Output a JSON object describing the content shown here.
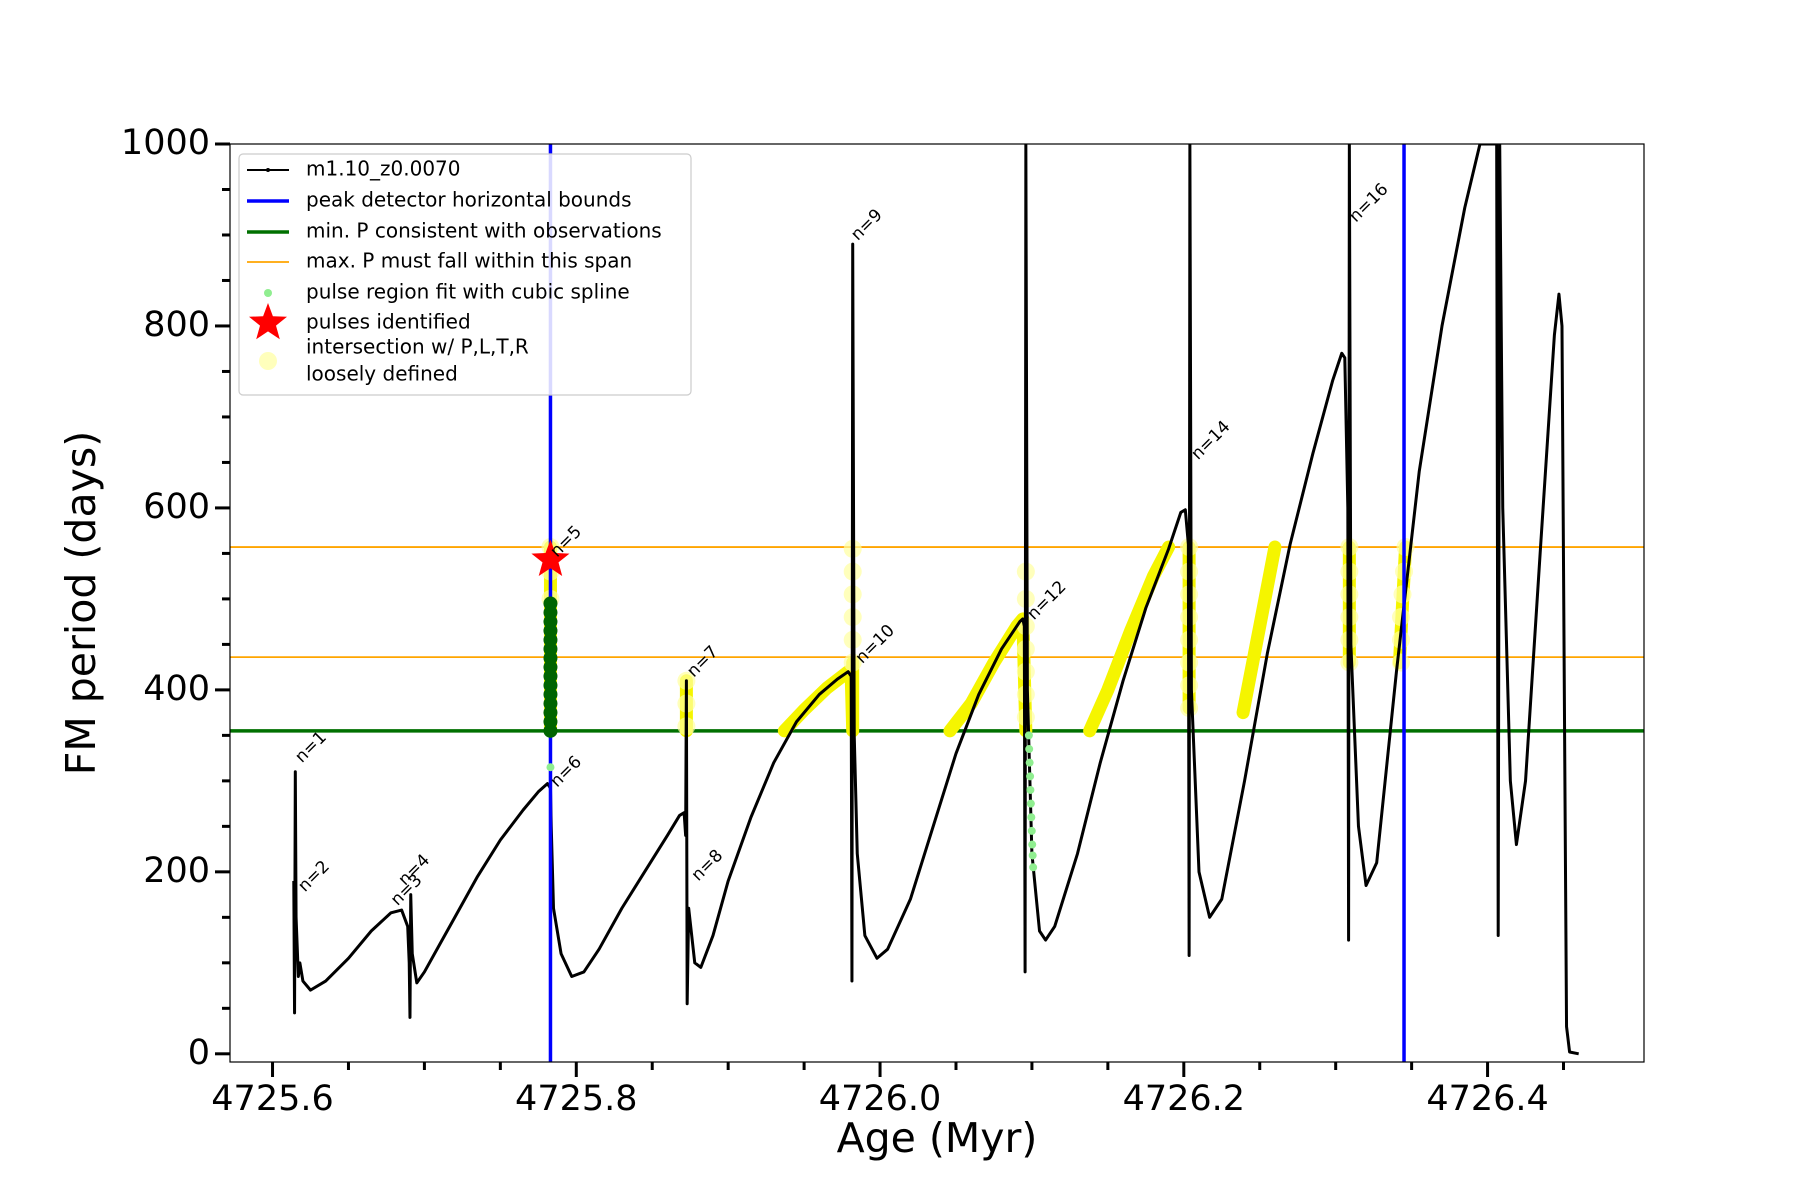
{
  "chart_data": {
    "type": "line",
    "xlabel": "Age (Myr)",
    "ylabel": "FM period (days)",
    "xlim": [
      4725.572,
      4726.503
    ],
    "ylim": [
      -9,
      1000
    ],
    "xticks": [
      4725.6,
      4725.8,
      {
        "value": 4726,
        "label": "4726.0"
      },
      4726.2,
      4726.4
    ],
    "xticks_minor": [
      4725.65,
      4725.7,
      4725.75,
      4725.85,
      4725.9,
      4725.95,
      4726.05,
      4726.1,
      4726.15,
      4726.25,
      4726.3,
      4726.35,
      4726.45
    ],
    "yticks": [
      0,
      200,
      400,
      600,
      800,
      1000
    ],
    "yticks_minor": [
      50,
      100,
      150,
      250,
      300,
      350,
      450,
      500,
      550,
      650,
      700,
      750,
      850,
      900,
      950
    ],
    "series": [
      {
        "name": "m1.10_z0.0070",
        "color": "#000000",
        "x": [
          4725.614,
          4725.6145,
          4725.615,
          4725.6155,
          4725.617,
          4725.618,
          4725.62,
          4725.625,
          4725.635,
          4725.65,
          4725.665,
          4725.678,
          4725.685,
          4725.689,
          4725.69,
          4725.6905,
          4725.691,
          4725.692,
          4725.695,
          4725.7,
          4725.71,
          4725.72,
          4725.735,
          4725.75,
          4725.765,
          4725.775,
          4725.781,
          4725.783,
          4725.7835,
          4725.785,
          4725.79,
          4725.797,
          4725.805,
          4725.815,
          4725.83,
          4725.845,
          4725.86,
          4725.868,
          4725.871,
          4725.872,
          4725.8725,
          4725.873,
          4725.874,
          4725.878,
          4725.882,
          4725.89,
          4725.9,
          4725.915,
          4725.93,
          4725.945,
          4725.96,
          4725.972,
          4725.979,
          4725.981,
          4725.9815,
          4725.982,
          4725.983,
          4725.985,
          4725.99,
          4725.998,
          4726.005,
          4726.02,
          4726.035,
          4726.05,
          4726.065,
          4726.08,
          4726.092,
          4726.094,
          4726.095,
          4726.0955,
          4726.096,
          4726.097,
          4726.1,
          4726.105,
          4726.109,
          4726.115,
          4726.13,
          4726.145,
          4726.16,
          4726.175,
          4726.19,
          4726.198,
          4726.201,
          4726.203,
          4726.2035,
          4726.204,
          4726.205,
          4726.21,
          4726.217,
          4726.225,
          4726.24,
          4726.255,
          4726.27,
          4726.285,
          4726.298,
          4726.304,
          4726.306,
          4726.308,
          4726.3085,
          4726.309,
          4726.31,
          4726.315,
          4726.32,
          4726.327,
          4726.34,
          4726.355,
          4726.37,
          4726.385,
          4726.395,
          4726.406,
          4726.407,
          4726.408,
          4726.41,
          4726.415,
          4726.419,
          4726.425,
          4726.435,
          4726.444,
          4726.447,
          4726.449,
          4726.451,
          4726.452,
          4726.454,
          4726.46
        ],
        "values": [
          190,
          45,
          310,
          150,
          85,
          100,
          80,
          70,
          80,
          105,
          135,
          155,
          158,
          140,
          100,
          40,
          175,
          110,
          78,
          90,
          120,
          150,
          195,
          235,
          268,
          288,
          297,
          292,
          250,
          160,
          110,
          85,
          90,
          115,
          160,
          200,
          240,
          262,
          265,
          240,
          410,
          55,
          160,
          100,
          95,
          130,
          190,
          260,
          320,
          365,
          395,
          412,
          420,
          415,
          80,
          890,
          350,
          220,
          130,
          105,
          115,
          170,
          250,
          330,
          395,
          445,
          475,
          478,
          470,
          90,
          1000,
          400,
          220,
          135,
          125,
          140,
          220,
          320,
          410,
          490,
          555,
          595,
          598,
          560,
          108,
          1000,
          400,
          200,
          150,
          170,
          300,
          440,
          560,
          660,
          740,
          770,
          765,
          600,
          125,
          1000,
          450,
          250,
          185,
          210,
          420,
          640,
          800,
          930,
          1000,
          1000,
          130,
          1000,
          600,
          300,
          230,
          300,
          560,
          790,
          835,
          800,
          280,
          30,
          2,
          0
        ]
      },
      {
        "name": "pulse region fit with cubic spline",
        "color": "#90ee90",
        "x": [
          4725.783,
          4726.098,
          4726.0982,
          4726.0985,
          4726.0988,
          4726.099,
          4726.0993,
          4726.0996,
          4726.0999,
          4726.1002,
          4726.1005,
          4726.1008
        ],
        "values": [
          315,
          350,
          335,
          320,
          305,
          290,
          275,
          260,
          245,
          230,
          218,
          205
        ]
      },
      {
        "name": [
          "intersection w/ P,L,T,R",
          "loosely defined"
        ],
        "color": "#ffffa0",
        "x": [
          4725.783,
          4725.783,
          4725.783,
          4725.8725,
          4725.8725,
          4725.8725,
          4725.982,
          4725.982,
          4725.982,
          4725.982,
          4725.982,
          4725.982,
          4726.096,
          4726.096,
          4726.096,
          4726.096,
          4726.096,
          4726.096,
          4726.096,
          4726.2035,
          4726.2035,
          4726.2035,
          4726.2035,
          4726.2035,
          4726.2035,
          4726.2035,
          4726.2035,
          4726.309,
          4726.309,
          4726.309,
          4726.309,
          4726.309,
          4726.309,
          4726.343,
          4726.343,
          4726.343,
          4726.344,
          4726.345,
          4726.346
        ],
        "values": [
          500,
          530,
          557,
          360,
          385,
          410,
          430,
          455,
          480,
          505,
          530,
          555,
          370,
          395,
          420,
          445,
          470,
          500,
          530,
          380,
          405,
          430,
          455,
          480,
          505,
          530,
          557,
          430,
          455,
          480,
          505,
          530,
          557,
          430,
          455,
          480,
          505,
          530,
          557
        ]
      }
    ],
    "intersection": {
      "color": "#f5f500",
      "x": [
        4725.783,
        4725.783,
        null,
        4725.8725,
        4725.8725,
        null,
        4725.937,
        4725.95,
        4725.965,
        4725.979,
        4725.981,
        4725.982,
        4725.982,
        null,
        4726.046,
        4726.06,
        4726.075,
        4726.09,
        4726.094,
        4726.096,
        null,
        4726.138,
        4726.15,
        4726.165,
        4726.18,
        4726.19,
        null,
        4726.2035,
        4726.2035,
        null,
        4726.239,
        4726.25,
        4726.26,
        null,
        4726.309,
        4726.309,
        null,
        4726.342,
        4726.346
      ],
      "values": [
        355,
        557,
        null,
        355,
        410,
        null,
        355,
        378,
        402,
        420,
        415,
        355,
        430,
        null,
        355,
        385,
        430,
        470,
        478,
        355,
        null,
        355,
        400,
        465,
        525,
        557,
        null,
        380,
        557,
        null,
        375,
        470,
        557,
        null,
        430,
        557,
        null,
        430,
        557
      ]
    },
    "pulse_points": {
      "color": "#006400",
      "x": [
        4725.783,
        4725.783,
        4725.783,
        4725.783,
        4725.783,
        4725.783,
        4725.783,
        4725.783,
        4725.783,
        4725.783,
        4725.783,
        4725.783,
        4725.783,
        4725.783,
        4725.783
      ],
      "values": [
        355,
        365,
        375,
        385,
        395,
        405,
        415,
        425,
        435,
        445,
        455,
        465,
        475,
        485,
        495
      ]
    },
    "vlines": {
      "name": "peak detector horizontal bounds",
      "color": "#0000ff",
      "values": [
        4725.783,
        4726.345
      ]
    },
    "hlines": [
      {
        "name": "min. P consistent with observations",
        "color": "#007000",
        "values": [
          355
        ]
      },
      {
        "name": "max. P must fall within this span",
        "color": "#ffa500",
        "values": [
          436,
          557
        ]
      }
    ],
    "star": {
      "name": "pulses identified",
      "color": "#ff0000",
      "x": [
        4725.783
      ],
      "values": [
        543
      ]
    },
    "annotations": [
      {
        "text": "n=1",
        "x": 4725.617,
        "y": 323
      },
      {
        "text": "n=2",
        "x": 4725.619,
        "y": 181
      },
      {
        "text": "n=3",
        "x": 4725.68,
        "y": 166
      },
      {
        "text": "n=4",
        "x": 4725.685,
        "y": 188
      },
      {
        "text": "n=5",
        "x": 4725.785,
        "y": 549
      },
      {
        "text": "n=6",
        "x": 4725.785,
        "y": 296
      },
      {
        "text": "n=7",
        "x": 4725.875,
        "y": 417
      },
      {
        "text": "n=8",
        "x": 4725.878,
        "y": 193
      },
      {
        "text": "n=9",
        "x": 4725.983,
        "y": 897
      },
      {
        "text": "n=10",
        "x": 4725.986,
        "y": 432
      },
      {
        "text": "n=12",
        "x": 4726.099,
        "y": 480
      },
      {
        "text": "n=14",
        "x": 4726.207,
        "y": 656
      },
      {
        "text": "n=16",
        "x": 4726.311,
        "y": 917
      }
    ]
  }
}
